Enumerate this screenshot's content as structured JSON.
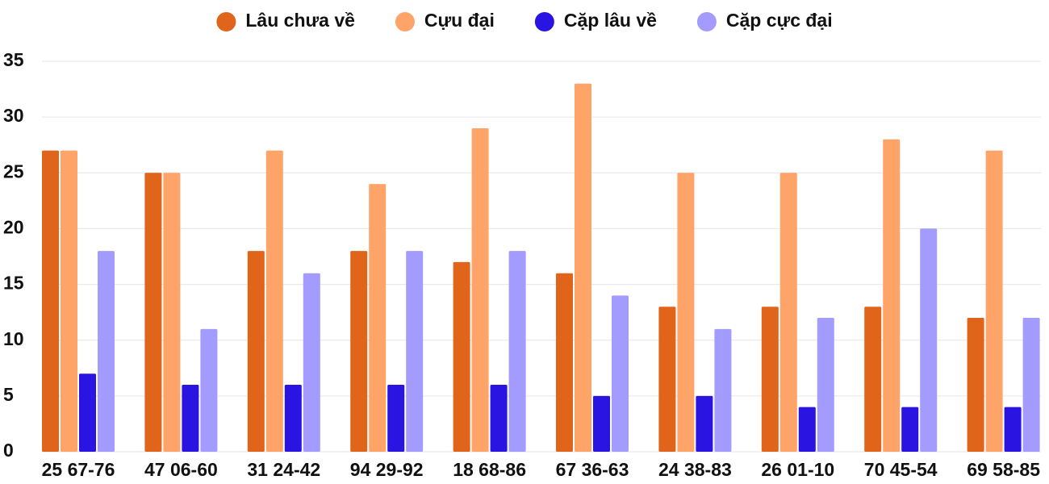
{
  "chart_data": {
    "type": "bar",
    "categories": [
      "25 67-76",
      "47 06-60",
      "31 24-42",
      "94 29-92",
      "18 68-86",
      "67 36-63",
      "24 38-83",
      "26 01-10",
      "70 45-54",
      "69 58-85"
    ],
    "series": [
      {
        "name": "Lâu chưa về",
        "color": "#e0641a",
        "values": [
          27,
          25,
          18,
          18,
          17,
          16,
          13,
          13,
          13,
          12
        ]
      },
      {
        "name": "Cựu đại",
        "color": "#ffa469",
        "values": [
          27,
          25,
          27,
          24,
          29,
          33,
          25,
          25,
          28,
          27
        ]
      },
      {
        "name": "Cặp lâu về",
        "color": "#2a14e2",
        "values": [
          7,
          6,
          6,
          6,
          6,
          5,
          5,
          4,
          4,
          4
        ]
      },
      {
        "name": "Cặp cực đại",
        "color": "#a49bff",
        "values": [
          18,
          11,
          16,
          18,
          18,
          14,
          11,
          12,
          20,
          12
        ]
      }
    ],
    "ylim": [
      0,
      35
    ],
    "yticks": [
      0,
      5,
      10,
      15,
      20,
      25,
      30,
      35
    ],
    "grid": true,
    "legend": "top"
  }
}
